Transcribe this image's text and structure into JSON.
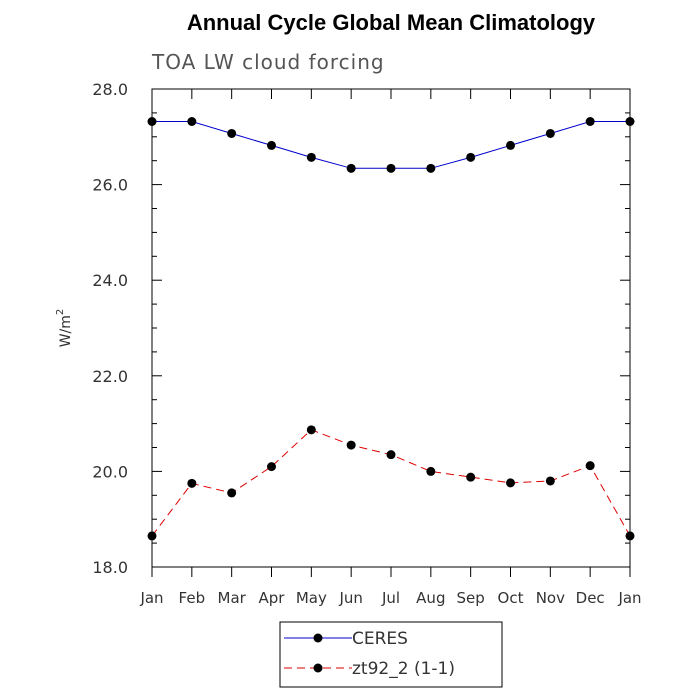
{
  "chart_data": {
    "type": "line",
    "title": "Annual Cycle Global Mean Climatology",
    "subtitle": "TOA LW cloud forcing",
    "xlabel": "",
    "ylabel": "W/m",
    "ylabel_superscript": "2",
    "categories": [
      "Jan",
      "Feb",
      "Mar",
      "Apr",
      "May",
      "Jun",
      "Jul",
      "Aug",
      "Sep",
      "Oct",
      "Nov",
      "Dec",
      "Jan"
    ],
    "ylim": [
      18.0,
      28.0
    ],
    "yticks": [
      18.0,
      20.0,
      22.0,
      24.0,
      26.0,
      28.0
    ],
    "ytick_labels": [
      "18.0",
      "20.0",
      "22.0",
      "24.0",
      "26.0",
      "28.0"
    ],
    "series": [
      {
        "name": "CERES",
        "color": "#0000cc",
        "dash": "solid",
        "marker": "circle",
        "values": [
          27.32,
          27.32,
          27.07,
          26.82,
          26.57,
          26.34,
          26.34,
          26.34,
          26.57,
          26.82,
          27.07,
          27.32,
          27.32
        ]
      },
      {
        "name": "zt92_2 (1-1)",
        "color": "#dd0000",
        "dash": "dashed",
        "marker": "circle",
        "values": [
          18.65,
          19.75,
          19.55,
          20.1,
          20.87,
          20.55,
          20.35,
          20.0,
          19.88,
          19.76,
          19.8,
          20.12,
          18.65
        ]
      }
    ],
    "legend": {
      "position": "bottom-center",
      "entries": [
        "CERES",
        "zt92_2 (1-1)"
      ]
    },
    "grid": false
  }
}
